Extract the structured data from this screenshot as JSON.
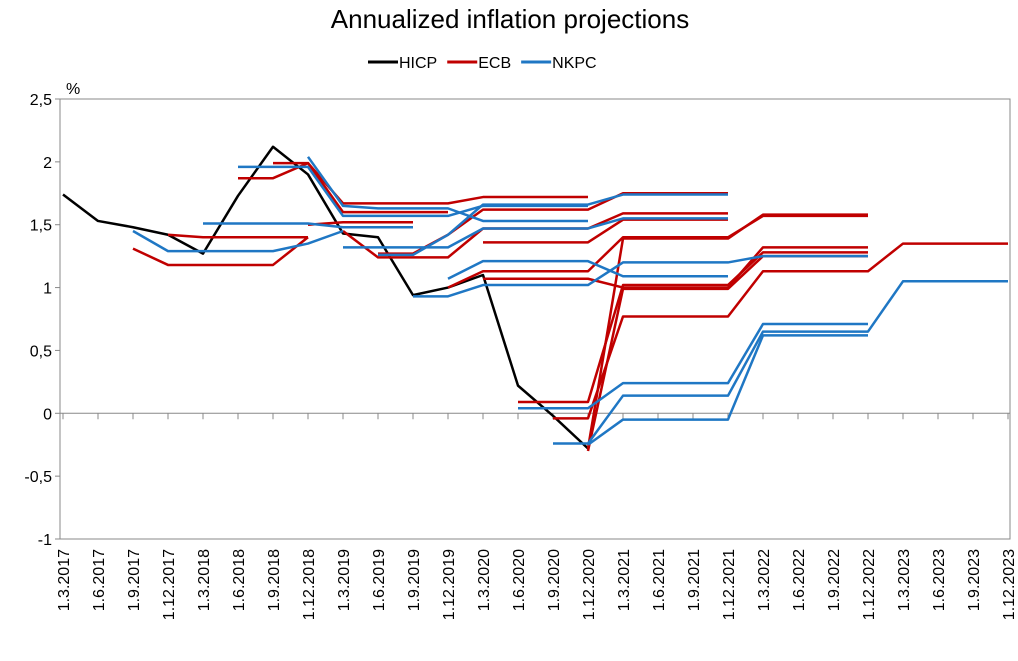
{
  "chart_data": {
    "type": "line",
    "title": "Annualized inflation projections",
    "y_unit": "%",
    "categories": [
      "1.3.2017",
      "1.6.2017",
      "1.9.2017",
      "1.12.2017",
      "1.3.2018",
      "1.6.2018",
      "1.9.2018",
      "1.12.2018",
      "1.3.2019",
      "1.6.2019",
      "1.9.2019",
      "1.12.2019",
      "1.3.2020",
      "1.6.2020",
      "1.9.2020",
      "1.12.2020",
      "1.3.2021",
      "1.6.2021",
      "1.9.2021",
      "1.12.2021",
      "1.3.2022",
      "1.6.2022",
      "1.9.2022",
      "1.12.2022",
      "1.3.2023",
      "1.6.2023",
      "1.9.2023",
      "1.12.2023"
    ],
    "ylim": [
      -1,
      2.5
    ],
    "yticks": [
      {
        "value": -1,
        "label": "-1"
      },
      {
        "value": -0.5,
        "label": "-0,5"
      },
      0,
      {
        "value": 0.5,
        "label": "0,5"
      },
      1,
      {
        "value": 1.5,
        "label": "1,5"
      },
      2,
      {
        "value": 2.5,
        "label": "2,5"
      }
    ],
    "legend": "top",
    "series": [
      {
        "name": "HICP",
        "color": "#000000",
        "lines": [
          [
            1.74,
            1.53,
            1.48,
            1.42,
            1.27,
            1.73,
            2.12,
            1.9,
            1.43,
            1.4,
            0.94,
            1.0,
            1.1,
            0.22,
            -0.02,
            -0.28,
            null,
            null,
            null,
            null,
            null,
            null,
            null,
            null,
            null,
            null,
            null,
            null
          ]
        ]
      },
      {
        "name": "ECB",
        "color": "#c00000",
        "lines": [
          [
            null,
            null,
            1.31,
            1.18,
            1.18,
            1.18,
            1.18,
            1.4,
            null,
            null,
            null,
            null,
            null,
            null,
            null,
            null,
            null,
            null,
            null,
            null,
            null,
            null,
            null,
            null,
            null,
            null,
            null,
            null
          ],
          [
            null,
            null,
            null,
            1.42,
            1.4,
            1.4,
            1.4,
            1.4,
            null,
            null,
            null,
            null,
            null,
            null,
            null,
            null,
            null,
            null,
            null,
            null,
            null,
            null,
            null,
            null,
            null,
            null,
            null,
            null
          ],
          [
            null,
            null,
            null,
            null,
            null,
            1.87,
            1.87,
            1.99,
            1.67,
            1.67,
            1.67,
            1.67,
            1.72,
            1.72,
            1.72,
            1.72,
            null,
            null,
            null,
            null,
            null,
            null,
            null,
            null,
            null,
            null,
            null,
            null
          ],
          [
            null,
            null,
            null,
            null,
            null,
            null,
            1.99,
            1.99,
            1.6,
            1.6,
            1.6,
            1.6,
            null,
            null,
            null,
            null,
            null,
            null,
            null,
            null,
            null,
            null,
            null,
            null,
            null,
            null,
            null,
            null
          ],
          [
            null,
            null,
            null,
            null,
            null,
            null,
            null,
            1.5,
            1.52,
            1.52,
            1.52,
            null,
            null,
            null,
            null,
            null,
            null,
            null,
            null,
            null,
            null,
            null,
            null,
            null,
            null,
            null,
            null,
            null
          ],
          [
            null,
            null,
            null,
            null,
            null,
            null,
            null,
            null,
            1.45,
            1.24,
            1.24,
            1.24,
            1.47,
            1.47,
            1.47,
            1.47,
            1.59,
            1.59,
            1.59,
            1.59,
            null,
            null,
            null,
            null,
            null,
            null,
            null,
            null
          ],
          [
            null,
            null,
            null,
            null,
            null,
            null,
            null,
            null,
            null,
            1.27,
            1.27,
            1.42,
            1.62,
            1.62,
            1.62,
            1.62,
            1.75,
            1.75,
            1.75,
            1.75,
            null,
            null,
            null,
            null,
            null,
            null,
            null,
            null
          ],
          [
            null,
            null,
            null,
            null,
            null,
            null,
            null,
            null,
            null,
            null,
            null,
            1.0,
            1.13,
            1.13,
            1.13,
            1.13,
            1.4,
            1.4,
            1.4,
            1.4,
            1.57,
            1.57,
            1.57,
            1.57,
            null,
            null,
            null,
            null
          ],
          [
            null,
            null,
            null,
            null,
            null,
            null,
            null,
            null,
            null,
            null,
            null,
            null,
            1.07,
            1.07,
            1.07,
            1.07,
            1.0,
            1.0,
            1.0,
            1.0,
            1.32,
            1.32,
            1.32,
            1.32,
            null,
            null,
            null,
            null
          ],
          [
            null,
            null,
            null,
            null,
            null,
            null,
            null,
            null,
            null,
            null,
            null,
            null,
            1.36,
            1.36,
            1.36,
            1.36,
            1.54,
            1.54,
            1.54,
            1.54,
            null,
            null,
            null,
            null,
            null,
            null,
            null,
            null
          ],
          [
            null,
            null,
            null,
            null,
            null,
            null,
            null,
            null,
            null,
            null,
            null,
            null,
            null,
            0.09,
            0.09,
            0.09,
            1.02,
            1.02,
            1.02,
            1.02,
            1.28,
            1.28,
            1.28,
            1.28,
            null,
            null,
            null,
            null
          ],
          [
            null,
            null,
            null,
            null,
            null,
            null,
            null,
            null,
            null,
            null,
            null,
            null,
            null,
            null,
            -0.04,
            -0.04,
            0.77,
            0.77,
            0.77,
            0.77,
            1.13,
            1.13,
            1.13,
            1.13,
            1.35,
            1.35,
            1.35,
            1.35
          ],
          [
            null,
            null,
            null,
            null,
            null,
            null,
            null,
            null,
            null,
            null,
            null,
            null,
            null,
            null,
            null,
            -0.3,
            0.99,
            0.99,
            0.99,
            0.99,
            1.25,
            1.25,
            1.25,
            1.25,
            null,
            null,
            null,
            null
          ],
          [
            null,
            null,
            null,
            null,
            null,
            null,
            null,
            null,
            null,
            null,
            null,
            null,
            null,
            null,
            null,
            -0.28,
            1.39,
            1.39,
            1.39,
            1.39,
            1.58,
            1.58,
            1.58,
            1.58,
            null,
            null,
            null,
            null
          ]
        ]
      },
      {
        "name": "NKPC",
        "color": "#1f77c4",
        "lines": [
          [
            null,
            null,
            1.45,
            1.29,
            1.29,
            1.29,
            1.29,
            1.35,
            1.45,
            null,
            null,
            null,
            null,
            null,
            null,
            null,
            null,
            null,
            null,
            null,
            null,
            null,
            null,
            null,
            null,
            null,
            null,
            null
          ],
          [
            null,
            null,
            null,
            null,
            1.51,
            1.51,
            1.51,
            1.51,
            1.48,
            1.48,
            1.48,
            null,
            null,
            null,
            null,
            null,
            null,
            null,
            null,
            null,
            null,
            null,
            null,
            null,
            null,
            null,
            null,
            null
          ],
          [
            null,
            null,
            null,
            null,
            null,
            1.96,
            1.96,
            1.96,
            1.57,
            1.57,
            1.57,
            1.57,
            1.65,
            1.65,
            1.65,
            1.65,
            null,
            null,
            null,
            null,
            null,
            null,
            null,
            null,
            null,
            null,
            null,
            null
          ],
          [
            null,
            null,
            null,
            null,
            null,
            null,
            null,
            2.04,
            1.65,
            1.63,
            1.63,
            1.63,
            1.53,
            1.53,
            1.53,
            1.53,
            null,
            null,
            null,
            null,
            null,
            null,
            null,
            null,
            null,
            null,
            null,
            null
          ],
          [
            null,
            null,
            null,
            null,
            null,
            null,
            null,
            null,
            1.32,
            1.32,
            1.32,
            1.32,
            1.47,
            1.47,
            1.47,
            1.47,
            1.55,
            1.55,
            1.55,
            1.55,
            null,
            null,
            null,
            null,
            null,
            null,
            null,
            null
          ],
          [
            null,
            null,
            null,
            null,
            null,
            null,
            null,
            null,
            null,
            1.26,
            1.26,
            1.42,
            1.66,
            1.66,
            1.66,
            1.66,
            1.74,
            1.74,
            1.74,
            1.74,
            null,
            null,
            null,
            null,
            null,
            null,
            null,
            null
          ],
          [
            null,
            null,
            null,
            null,
            null,
            null,
            null,
            null,
            null,
            null,
            0.93,
            0.93,
            1.02,
            1.02,
            1.02,
            1.02,
            1.2,
            1.2,
            1.2,
            1.2,
            1.25,
            1.25,
            1.25,
            1.25,
            null,
            null,
            null,
            null
          ],
          [
            null,
            null,
            null,
            null,
            null,
            null,
            null,
            null,
            null,
            null,
            null,
            1.07,
            1.21,
            1.21,
            1.21,
            1.21,
            1.09,
            1.09,
            1.09,
            1.09,
            null,
            null,
            null,
            null,
            null,
            null,
            null,
            null
          ],
          [
            null,
            null,
            null,
            null,
            null,
            null,
            null,
            null,
            null,
            null,
            null,
            null,
            null,
            0.04,
            0.04,
            0.04,
            0.24,
            0.24,
            0.24,
            0.24,
            0.71,
            0.71,
            0.71,
            0.71,
            null,
            null,
            null,
            null
          ],
          [
            null,
            null,
            null,
            null,
            null,
            null,
            null,
            null,
            null,
            null,
            null,
            null,
            null,
            null,
            -0.24,
            -0.24,
            0.14,
            0.14,
            0.14,
            0.14,
            0.65,
            0.65,
            0.65,
            0.65,
            1.05,
            1.05,
            1.05,
            1.05
          ],
          [
            null,
            null,
            null,
            null,
            null,
            null,
            null,
            null,
            null,
            null,
            null,
            null,
            null,
            null,
            null,
            -0.25,
            -0.05,
            -0.05,
            -0.05,
            -0.05,
            0.62,
            0.62,
            0.62,
            0.62,
            null,
            null,
            null,
            null
          ]
        ]
      }
    ]
  }
}
